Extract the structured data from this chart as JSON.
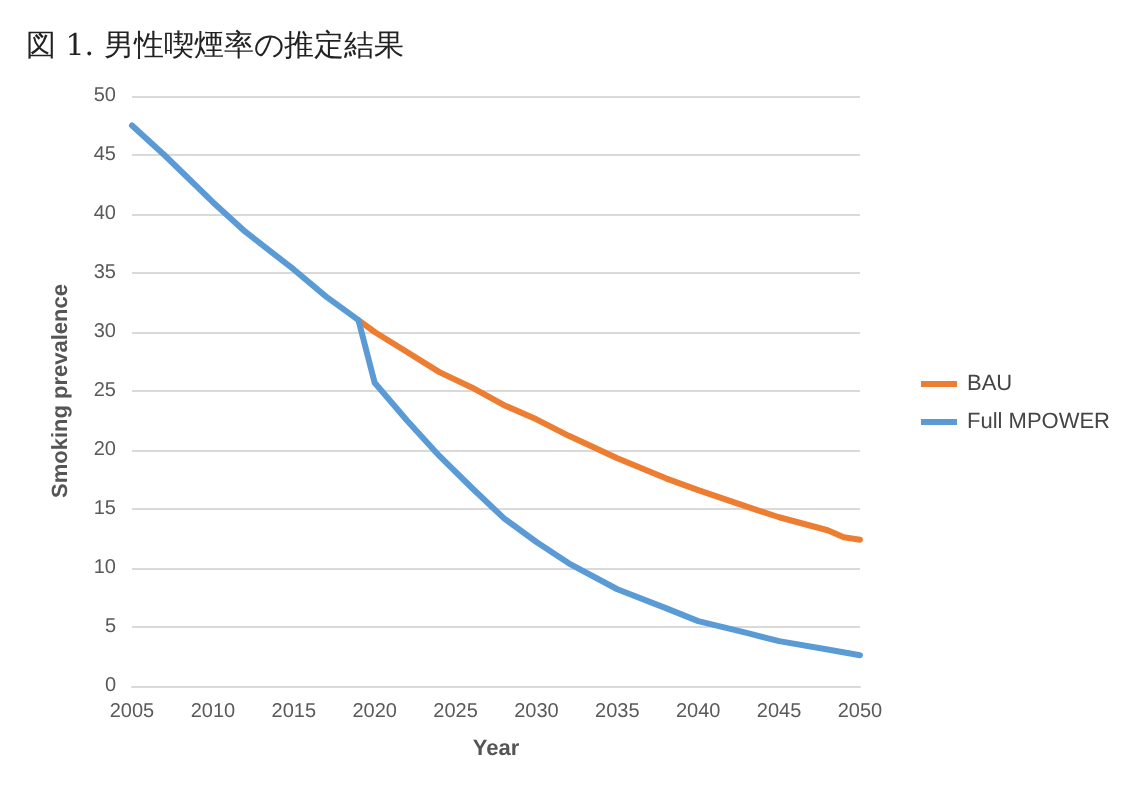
{
  "chart_data": {
    "type": "line",
    "title": "図 1. 男性喫煙率の推定結果",
    "xlabel": "Year",
    "ylabel": "Smoking prevalence",
    "xlim": [
      2005,
      2050
    ],
    "xticks": [
      2005,
      2010,
      2015,
      2020,
      2025,
      2030,
      2035,
      2040,
      2045,
      2050
    ],
    "ylim": [
      0,
      50
    ],
    "yticks": [
      0,
      5,
      10,
      15,
      20,
      25,
      30,
      35,
      40,
      45,
      50
    ],
    "grid": "y",
    "legend": "right",
    "marker": "none",
    "line_style": "solid",
    "series": [
      {
        "name": "BAU",
        "color": "#ed7d31",
        "x": [
          2019,
          2020,
          2022,
          2024,
          2026,
          2028,
          2030,
          2032,
          2035,
          2038,
          2040,
          2043,
          2045,
          2048,
          2049,
          2050
        ],
        "values": [
          31,
          30,
          28.3,
          26.6,
          25.3,
          23.8,
          22.6,
          21.2,
          19.3,
          17.6,
          16.6,
          15.2,
          14.3,
          13.2,
          12.6,
          12.4
        ]
      },
      {
        "name": "Full MPOWER",
        "color": "#5b9bd5",
        "x": [
          2005,
          2007,
          2010,
          2012,
          2015,
          2017,
          2019,
          2020,
          2022,
          2024,
          2026,
          2028,
          2030,
          2032,
          2035,
          2038,
          2040,
          2043,
          2045,
          2048,
          2050
        ],
        "values": [
          47.5,
          45,
          41,
          38.5,
          35.3,
          33,
          31,
          25.7,
          22.5,
          19.5,
          16.8,
          14.2,
          12.2,
          10.4,
          8.2,
          6.6,
          5.5,
          4.5,
          3.8,
          3.1,
          2.6
        ]
      }
    ]
  }
}
